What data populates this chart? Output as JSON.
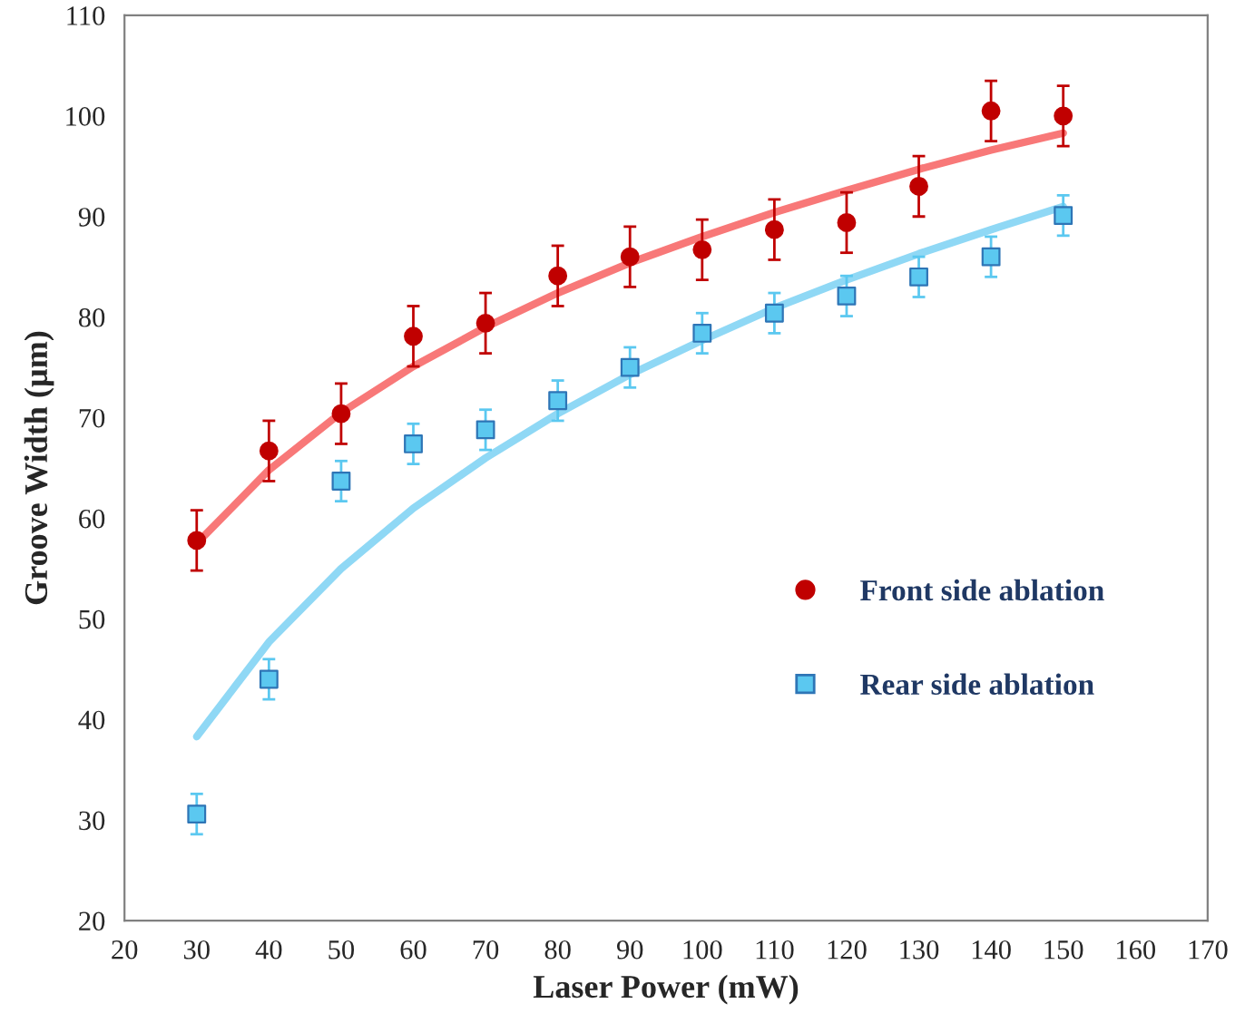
{
  "chart_data": {
    "type": "scatter",
    "xlabel": "Laser Power (mW)",
    "ylabel": "Groove Width (µm)",
    "xlim": [
      20,
      170
    ],
    "xticks": [
      20,
      30,
      40,
      50,
      60,
      70,
      80,
      90,
      100,
      110,
      120,
      130,
      140,
      150,
      160,
      170
    ],
    "ylim": [
      20,
      110
    ],
    "yticks": [
      20,
      30,
      40,
      50,
      60,
      70,
      80,
      90,
      100,
      110
    ],
    "grid": false,
    "legend": "right",
    "series": [
      {
        "type": "line",
        "color": "#f87878",
        "marker": "none",
        "x": [
          30,
          40,
          50,
          60,
          70,
          80,
          90,
          100,
          110,
          120,
          130,
          140,
          150
        ],
        "values": [
          57.5,
          64.8,
          70.5,
          75.1,
          79.0,
          82.4,
          85.4,
          88.0,
          90.4,
          92.6,
          94.7,
          96.6,
          98.3
        ]
      },
      {
        "type": "line",
        "color": "#8fd8f5",
        "marker": "none",
        "x": [
          30,
          40,
          50,
          60,
          70,
          80,
          90,
          100,
          110,
          120,
          130,
          140,
          150
        ],
        "values": [
          38.3,
          47.7,
          55.0,
          61.0,
          66.0,
          70.4,
          74.3,
          77.7,
          80.9,
          83.7,
          86.3,
          88.7,
          91.0
        ]
      },
      {
        "name": "Front side ablation",
        "color": "#c00000",
        "marker": "circle",
        "x": [
          30,
          40,
          50,
          60,
          70,
          80,
          90,
          100,
          110,
          120,
          130,
          140,
          150
        ],
        "values": [
          57.8,
          66.7,
          70.4,
          78.1,
          79.4,
          84.1,
          86.0,
          86.7,
          88.7,
          89.4,
          93.0,
          100.5,
          100.0
        ],
        "errors": [
          3,
          3,
          3,
          3,
          3,
          3,
          3,
          3,
          3,
          3,
          3,
          3,
          3
        ]
      },
      {
        "name": "Rear side ablation",
        "color": "#5bc8f0",
        "marker": "square",
        "x": [
          30,
          40,
          50,
          60,
          70,
          80,
          90,
          100,
          110,
          120,
          130,
          140,
          150
        ],
        "values": [
          30.6,
          44.0,
          63.7,
          67.4,
          68.8,
          71.7,
          75.0,
          78.4,
          80.4,
          82.1,
          84.0,
          86.0,
          90.1
        ],
        "errors": [
          2,
          2,
          2,
          2,
          2,
          2,
          2,
          2,
          2,
          2,
          2,
          2,
          2
        ]
      }
    ]
  }
}
